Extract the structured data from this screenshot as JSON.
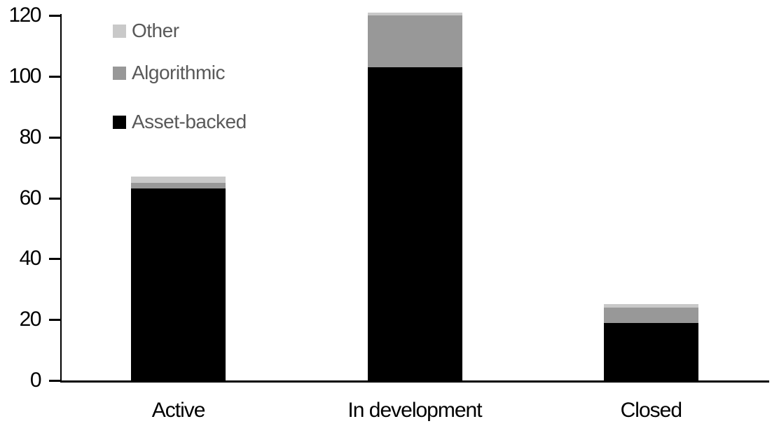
{
  "chart_data": {
    "type": "bar",
    "stacked": true,
    "title": "",
    "xlabel": "",
    "ylabel": "",
    "categories": [
      "Active",
      "In development",
      "Closed"
    ],
    "series": [
      {
        "name": "Asset-backed",
        "color": "#000000",
        "values": [
          63,
          103,
          19
        ]
      },
      {
        "name": "Algorithmic",
        "color": "#989898",
        "values": [
          2,
          17,
          5
        ]
      },
      {
        "name": "Other",
        "color": "#c9c9c9",
        "values": [
          2,
          1,
          1
        ]
      }
    ],
    "totals": [
      67,
      121,
      25
    ],
    "ylim": [
      0,
      120
    ],
    "yticks": [
      0,
      20,
      40,
      60,
      80,
      100,
      120
    ],
    "grid": false,
    "legend_position": "top-left",
    "legend_order": [
      "Other",
      "Algorithmic",
      "Asset-backed"
    ]
  },
  "styles": {
    "background": "#ffffff",
    "axis_color": "#000000",
    "tick_label_color": "#000000",
    "x_label_color": "#000000",
    "legend_text_color": "#595959"
  }
}
